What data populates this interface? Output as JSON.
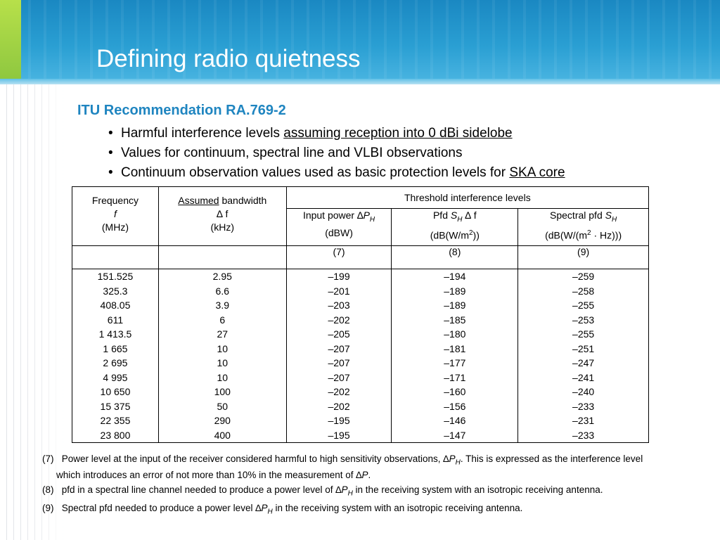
{
  "slide": {
    "title": "Defining radio quietness",
    "subtitle": "ITU Recommendation RA.769-2",
    "bullets": [
      {
        "text": "Harmful interference levels ",
        "underlined": "assuming reception into 0 dBi sidelobe"
      },
      {
        "text": "Values for continuum, spectral line and VLBI observations",
        "underlined": ""
      },
      {
        "text": "Continuum observation values used as basic protection levels for ",
        "underlined": "SKA core"
      }
    ]
  },
  "table": {
    "freq_header": {
      "line1": "Frequency",
      "line2": "f",
      "line3": "(MHz)"
    },
    "bw_header": {
      "underlined": "Assumed",
      "rest": " bandwidth",
      "line2": "∆ f",
      "line3": "(kHz)"
    },
    "threshold_header": "Threshold interference levels",
    "input_power_header": {
      "label": "Input power ∆",
      "sym": "P",
      "sub": "H",
      "unit": "(dBW)"
    },
    "pfd_header": {
      "label": "Pfd ",
      "sym": "S",
      "sub": "H",
      "rest": " ∆ f",
      "unit_a": "(dB(W/m",
      "unit_sup": "2",
      "unit_b": "))"
    },
    "spectral_header": {
      "label": "Spectral pfd ",
      "sym": "S",
      "sub": "H",
      "unit_a": "(dB(W/(m",
      "unit_sup": "2",
      "unit_b": " · Hz)))"
    },
    "col_nums": [
      "(7)",
      "(8)",
      "(9)"
    ],
    "frequency": [
      "151.525",
      "325.3",
      "408.05",
      "611",
      "1 413.5",
      "1 665",
      "2 695",
      "4 995",
      "10 650",
      "15 375",
      "22 355",
      "23 800"
    ],
    "bandwidth": [
      "2.95",
      "6.6",
      "3.9",
      "6",
      "27",
      "10",
      "10",
      "10",
      "100",
      "50",
      "290",
      "400"
    ],
    "input_power": [
      "–199",
      "–201",
      "–203",
      "–202",
      "–205",
      "–207",
      "–207",
      "–207",
      "–202",
      "–202",
      "–195",
      "–195"
    ],
    "pfd": [
      "–194",
      "–189",
      "–189",
      "–185",
      "–180",
      "–181",
      "–177",
      "–171",
      "–160",
      "–156",
      "–146",
      "–147"
    ],
    "spectral_pfd": [
      "–259",
      "–258",
      "–255",
      "–253",
      "–255",
      "–251",
      "–247",
      "–241",
      "–240",
      "–233",
      "–231",
      "–233"
    ]
  },
  "notes": {
    "n7": {
      "num": "(7)",
      "a": "Power level at the input of the receiver considered harmful to high sensitivity observations, ∆",
      "sym": "P",
      "sub": "H",
      "b": ". This is expressed as the interference level which introduces an error of not more than 10% in the measurement of ∆",
      "sym2": "P",
      "c": "."
    },
    "n8": {
      "num": "(8)",
      "a": "pfd in a spectral line channel needed to produce a power level of ∆",
      "sym": "P",
      "sub": "H",
      "b": " in the receiving system with an isotropic receiving antenna."
    },
    "n9": {
      "num": "(9)",
      "a": "Spectral pfd needed to produce a power level ∆",
      "sym": "P",
      "sub": "H",
      "b": " in the receiving system with an isotropic receiving antenna."
    }
  }
}
